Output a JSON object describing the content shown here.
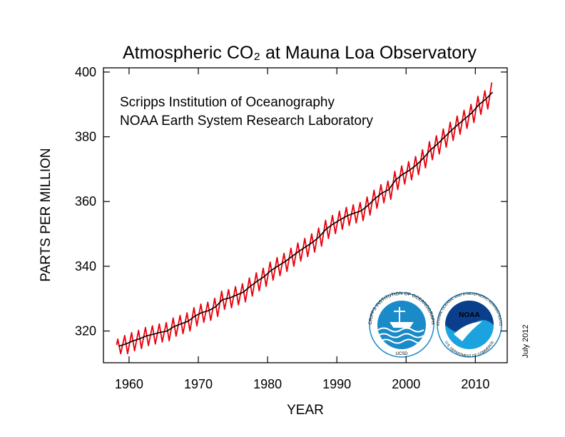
{
  "chart_data": {
    "type": "line",
    "title": "Atmospheric CO₂ at Mauna Loa Observatory",
    "annotations": [
      "Scripps Institution of Oceanography",
      "NOAA Earth System Research Laboratory"
    ],
    "date_note": "July 2012",
    "x_label": "YEAR",
    "y_label": "PARTS PER MILLION",
    "logos": {
      "scripps_ring": "SCRIPPS INSTITUTION OF OCEANOGRAPHY",
      "scripps_bottom": "UCSD",
      "noaa_ring": "NATIONAL OCEANIC AND ATMOSPHERIC ADMINISTRATION",
      "noaa_bottom": "U.S. DEPARTMENT OF COMMERCE",
      "noaa_center": "NOAA"
    },
    "xlim": [
      1956.3,
      2014.6
    ],
    "ylim": [
      310.2,
      401.3
    ],
    "xticks": [
      1960,
      1970,
      1980,
      1990,
      2000,
      2010
    ],
    "yticks": [
      320,
      340,
      360,
      380,
      400
    ],
    "series": [
      {
        "color": "#e8000b",
        "x": [
          1958.21,
          1958.37,
          1958.79,
          1959.37,
          1959.79,
          1960.37,
          1960.79,
          1961.37,
          1961.79,
          1962.37,
          1962.79,
          1963.37,
          1963.79,
          1964.37,
          1964.79,
          1965.37,
          1965.79,
          1966.37,
          1966.79,
          1967.37,
          1967.79,
          1968.37,
          1968.79,
          1969.37,
          1969.79,
          1970.37,
          1970.79,
          1971.37,
          1971.79,
          1972.37,
          1972.79,
          1973.37,
          1973.79,
          1974.37,
          1974.79,
          1975.37,
          1975.79,
          1976.37,
          1976.79,
          1977.37,
          1977.79,
          1978.37,
          1978.79,
          1979.37,
          1979.79,
          1980.37,
          1980.79,
          1981.37,
          1981.79,
          1982.37,
          1982.79,
          1983.37,
          1983.79,
          1984.37,
          1984.79,
          1985.37,
          1985.79,
          1986.37,
          1986.79,
          1987.37,
          1987.79,
          1988.37,
          1988.79,
          1989.37,
          1989.79,
          1990.37,
          1990.79,
          1991.37,
          1991.79,
          1992.37,
          1992.79,
          1993.37,
          1993.79,
          1994.37,
          1994.79,
          1995.37,
          1995.79,
          1996.37,
          1996.79,
          1997.37,
          1997.79,
          1998.37,
          1998.79,
          1999.37,
          1999.79,
          2000.37,
          2000.79,
          2001.37,
          2001.79,
          2002.37,
          2002.79,
          2003.37,
          2003.79,
          2004.37,
          2004.79,
          2005.37,
          2005.79,
          2006.37,
          2006.79,
          2007.37,
          2007.79,
          2008.37,
          2008.79,
          2009.37,
          2009.79,
          2010.37,
          2010.79,
          2011.37,
          2011.79,
          2012.37
        ],
        "values": [
          315.7,
          317.5,
          313.0,
          318.6,
          313.0,
          319.5,
          313.9,
          320.2,
          314.6,
          321.1,
          315.5,
          321.6,
          316.0,
          322.2,
          316.6,
          322.6,
          317.0,
          324.0,
          318.4,
          324.8,
          319.2,
          325.6,
          320.0,
          327.2,
          321.6,
          328.3,
          322.7,
          328.9,
          323.3,
          330.1,
          324.5,
          332.3,
          326.7,
          332.8,
          327.2,
          333.7,
          328.1,
          334.6,
          329.0,
          336.4,
          330.8,
          338.0,
          332.4,
          339.4,
          333.8,
          341.3,
          335.7,
          342.7,
          337.1,
          344.0,
          338.4,
          345.6,
          340.0,
          347.2,
          341.6,
          348.6,
          343.0,
          350.0,
          344.4,
          351.8,
          346.2,
          354.2,
          348.6,
          355.7,
          350.1,
          357.0,
          351.4,
          358.2,
          352.6,
          359.0,
          353.4,
          359.7,
          354.1,
          361.4,
          355.8,
          363.5,
          357.9,
          365.2,
          359.6,
          366.3,
          360.7,
          369.3,
          363.7,
          371.0,
          365.4,
          372.3,
          366.7,
          373.9,
          368.3,
          376.0,
          370.4,
          378.5,
          372.9,
          380.3,
          374.7,
          382.4,
          376.8,
          384.5,
          378.9,
          386.4,
          380.8,
          388.2,
          382.6,
          390.0,
          384.4,
          392.5,
          386.9,
          394.2,
          388.6,
          396.8
        ]
      },
      {
        "color": "#000000",
        "x": [
          1958.5,
          1959.5,
          1960.5,
          1961.5,
          1962.5,
          1963.5,
          1964.5,
          1965.5,
          1966.5,
          1967.5,
          1968.5,
          1969.5,
          1970.5,
          1971.5,
          1972.5,
          1973.5,
          1974.5,
          1975.5,
          1976.5,
          1977.5,
          1978.5,
          1979.5,
          1980.5,
          1981.5,
          1982.5,
          1983.5,
          1984.5,
          1985.5,
          1986.5,
          1987.5,
          1988.5,
          1989.5,
          1990.5,
          1991.5,
          1992.5,
          1993.5,
          1994.5,
          1995.5,
          1996.5,
          1997.5,
          1998.5,
          1999.5,
          2000.5,
          2001.5,
          2002.5,
          2003.5,
          2004.5,
          2005.5,
          2006.5,
          2007.5,
          2008.5,
          2009.5,
          2010.5,
          2011.5,
          2012.5
        ],
        "values": [
          315.3,
          316.0,
          316.9,
          317.6,
          318.5,
          319.0,
          319.6,
          320.0,
          321.4,
          322.2,
          323.0,
          324.6,
          325.7,
          326.3,
          327.5,
          329.7,
          330.2,
          331.1,
          332.0,
          333.8,
          335.4,
          336.8,
          338.7,
          340.1,
          341.4,
          343.0,
          344.6,
          346.0,
          347.4,
          349.2,
          351.6,
          353.1,
          354.4,
          355.6,
          356.4,
          357.1,
          358.8,
          360.9,
          362.6,
          363.7,
          366.7,
          368.4,
          369.7,
          371.3,
          373.4,
          375.9,
          377.7,
          379.8,
          381.9,
          383.8,
          385.6,
          387.4,
          389.9,
          391.6,
          393.8
        ]
      }
    ]
  }
}
